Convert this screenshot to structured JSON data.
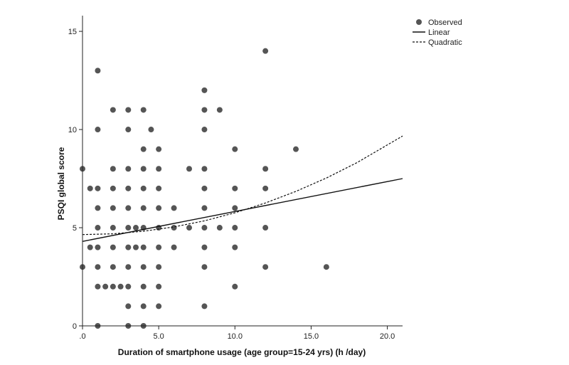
{
  "chart_data": {
    "type": "scatter",
    "xlabel": "Duration of smartphone usage (age group=15-24 yrs) (h /day)",
    "ylabel": "PSQI global score",
    "xlim": [
      0,
      21
    ],
    "ylim": [
      0,
      15.8
    ],
    "x_ticks": [
      0,
      5,
      10,
      15,
      20
    ],
    "x_tick_labels": [
      ".0",
      "5.0",
      "10.0",
      "15.0",
      "20.0"
    ],
    "y_ticks": [
      0,
      5,
      10,
      15
    ],
    "y_tick_labels": [
      "0",
      "5",
      "10",
      "15"
    ],
    "grid": false,
    "legend_position": "top-right",
    "legend": [
      {
        "label": "Observed",
        "marker": "circle"
      },
      {
        "label": "Linear",
        "line": "solid"
      },
      {
        "label": "Quadratic",
        "line": "dashed"
      }
    ],
    "colors": {
      "points": "#555555",
      "lines": "#111111",
      "axes": "#222222"
    },
    "series": [
      {
        "name": "Observed",
        "kind": "points",
        "points": [
          [
            0,
            8
          ],
          [
            0,
            3
          ],
          [
            0.5,
            7
          ],
          [
            0.5,
            4
          ],
          [
            1,
            13
          ],
          [
            1,
            10
          ],
          [
            1,
            7
          ],
          [
            1,
            6
          ],
          [
            1,
            5
          ],
          [
            1,
            4
          ],
          [
            1,
            3
          ],
          [
            1,
            2
          ],
          [
            1,
            0
          ],
          [
            1.5,
            2
          ],
          [
            2,
            11
          ],
          [
            2,
            8
          ],
          [
            2,
            7
          ],
          [
            2,
            6
          ],
          [
            2,
            5
          ],
          [
            2,
            4
          ],
          [
            2,
            3
          ],
          [
            2,
            2
          ],
          [
            2.5,
            2
          ],
          [
            3,
            11
          ],
          [
            3,
            10
          ],
          [
            3,
            8
          ],
          [
            3,
            7
          ],
          [
            3,
            6
          ],
          [
            3,
            5
          ],
          [
            3,
            4
          ],
          [
            3,
            3
          ],
          [
            3,
            2
          ],
          [
            3,
            1
          ],
          [
            3,
            0
          ],
          [
            3.5,
            5
          ],
          [
            3.5,
            4
          ],
          [
            4,
            11
          ],
          [
            4,
            9
          ],
          [
            4,
            8
          ],
          [
            4,
            7
          ],
          [
            4,
            6
          ],
          [
            4,
            5
          ],
          [
            4,
            4
          ],
          [
            4,
            3
          ],
          [
            4,
            2
          ],
          [
            4,
            1
          ],
          [
            4,
            0
          ],
          [
            4.5,
            10
          ],
          [
            5,
            9
          ],
          [
            5,
            8
          ],
          [
            5,
            7
          ],
          [
            5,
            6
          ],
          [
            5,
            5
          ],
          [
            5,
            4
          ],
          [
            5,
            3
          ],
          [
            5,
            2
          ],
          [
            5,
            1
          ],
          [
            6,
            6
          ],
          [
            6,
            5
          ],
          [
            6,
            4
          ],
          [
            7,
            8
          ],
          [
            7,
            5
          ],
          [
            8,
            12
          ],
          [
            8,
            11
          ],
          [
            8,
            10
          ],
          [
            8,
            8
          ],
          [
            8,
            7
          ],
          [
            8,
            6
          ],
          [
            8,
            5
          ],
          [
            8,
            4
          ],
          [
            8,
            3
          ],
          [
            8,
            1
          ],
          [
            9,
            11
          ],
          [
            9,
            5
          ],
          [
            10,
            9
          ],
          [
            10,
            7
          ],
          [
            10,
            6
          ],
          [
            10,
            5
          ],
          [
            10,
            4
          ],
          [
            10,
            2
          ],
          [
            12,
            14
          ],
          [
            12,
            8
          ],
          [
            12,
            7
          ],
          [
            12,
            5
          ],
          [
            12,
            3
          ],
          [
            14,
            9
          ],
          [
            16,
            3
          ]
        ]
      },
      {
        "name": "Linear",
        "kind": "line",
        "x": [
          0,
          21
        ],
        "values": [
          4.3,
          7.5
        ]
      },
      {
        "name": "Quadratic",
        "kind": "curve",
        "x": [
          0,
          2,
          4,
          6,
          8,
          10,
          12,
          14,
          16,
          18,
          21
        ],
        "values": [
          4.65,
          4.69,
          4.82,
          5.04,
          5.35,
          5.76,
          6.26,
          6.85,
          7.53,
          8.31,
          9.67
        ]
      }
    ]
  }
}
